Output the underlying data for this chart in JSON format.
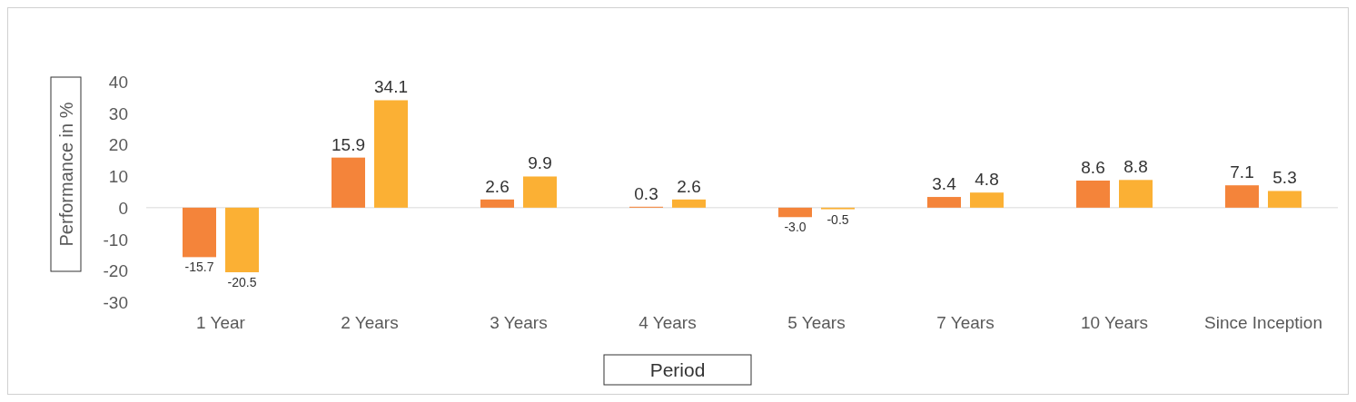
{
  "chart_data": {
    "type": "bar",
    "xlabel": "Period",
    "ylabel": "Performance in %",
    "categories": [
      "1 Year",
      "2 Years",
      "3 Years",
      "4 Years",
      "5 Years",
      "7 Years",
      "10 Years",
      "Since Inception"
    ],
    "series": [
      {
        "color": "#f4843a",
        "values": [
          -15.7,
          15.9,
          2.6,
          0.3,
          -3.0,
          3.4,
          8.6,
          7.1
        ],
        "value_labels": [
          "-15.7",
          "15.9",
          "2.6",
          "0.3",
          "-3.0",
          "3.4",
          "8.6",
          "7.1"
        ]
      },
      {
        "color": "#fbb034",
        "values": [
          -20.5,
          34.1,
          9.9,
          2.6,
          -0.5,
          4.8,
          8.8,
          5.3
        ],
        "value_labels": [
          "-20.5",
          "34.1",
          "9.9",
          "2.6",
          "-0.5",
          "4.8",
          "8.8",
          "5.3"
        ]
      }
    ],
    "ylim": [
      -30,
      40
    ],
    "yticks": [
      -30,
      -20,
      -10,
      0,
      10,
      20,
      30,
      40
    ]
  }
}
